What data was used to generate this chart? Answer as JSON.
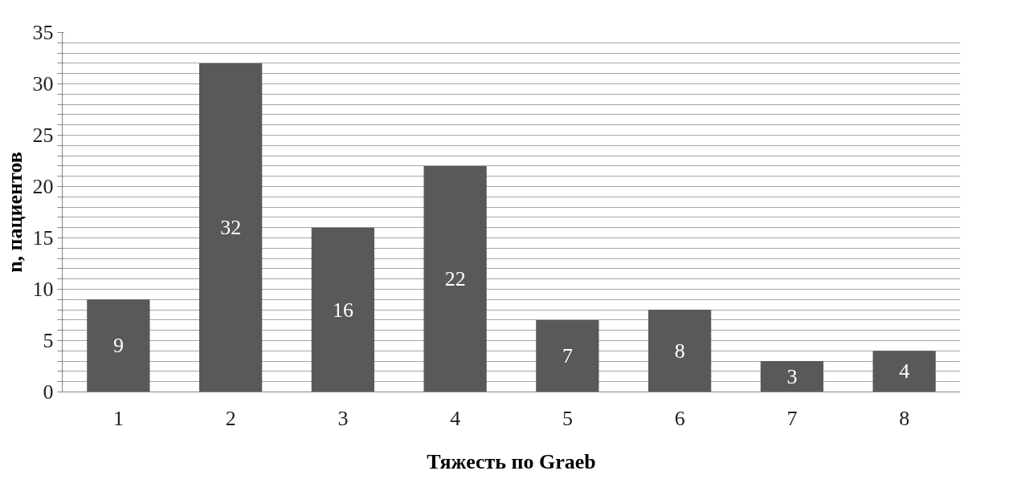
{
  "chart_data": {
    "type": "bar",
    "xlabel": "Тяжесть по Graeb",
    "ylabel": "n, пациентов",
    "categories": [
      "1",
      "2",
      "3",
      "4",
      "5",
      "6",
      "7",
      "8"
    ],
    "values": [
      9,
      32,
      16,
      22,
      7,
      8,
      3,
      4
    ],
    "color": "#595959",
    "data_labels": true,
    "grid": "y",
    "ylim": [
      0,
      35
    ],
    "yticks": [
      0,
      {
        "value": 1,
        "label": null
      },
      {
        "value": 2,
        "label": null
      },
      {
        "value": 3,
        "label": null
      },
      {
        "value": 4,
        "label": null
      },
      5,
      {
        "value": 6,
        "label": null
      },
      {
        "value": 7,
        "label": null
      },
      {
        "value": 8,
        "label": null
      },
      {
        "value": 9,
        "label": null
      },
      10,
      {
        "value": 11,
        "label": null
      },
      {
        "value": 12,
        "label": null
      },
      {
        "value": 13,
        "label": null
      },
      {
        "value": 14,
        "label": null
      },
      15,
      {
        "value": 16,
        "label": null
      },
      {
        "value": 17,
        "label": null
      },
      {
        "value": 18,
        "label": null
      },
      {
        "value": 19,
        "label": null
      },
      20,
      {
        "value": 21,
        "label": null
      },
      {
        "value": 22,
        "label": null
      },
      {
        "value": 23,
        "label": null
      },
      {
        "value": 24,
        "label": null
      },
      25,
      {
        "value": 26,
        "label": null
      },
      {
        "value": 27,
        "label": null
      },
      {
        "value": 28,
        "label": null
      },
      {
        "value": 29,
        "label": null
      },
      30,
      {
        "value": 31,
        "label": null
      },
      {
        "value": 32,
        "label": null
      },
      {
        "value": 33,
        "label": null
      },
      {
        "value": 34,
        "label": null
      },
      35
    ]
  }
}
